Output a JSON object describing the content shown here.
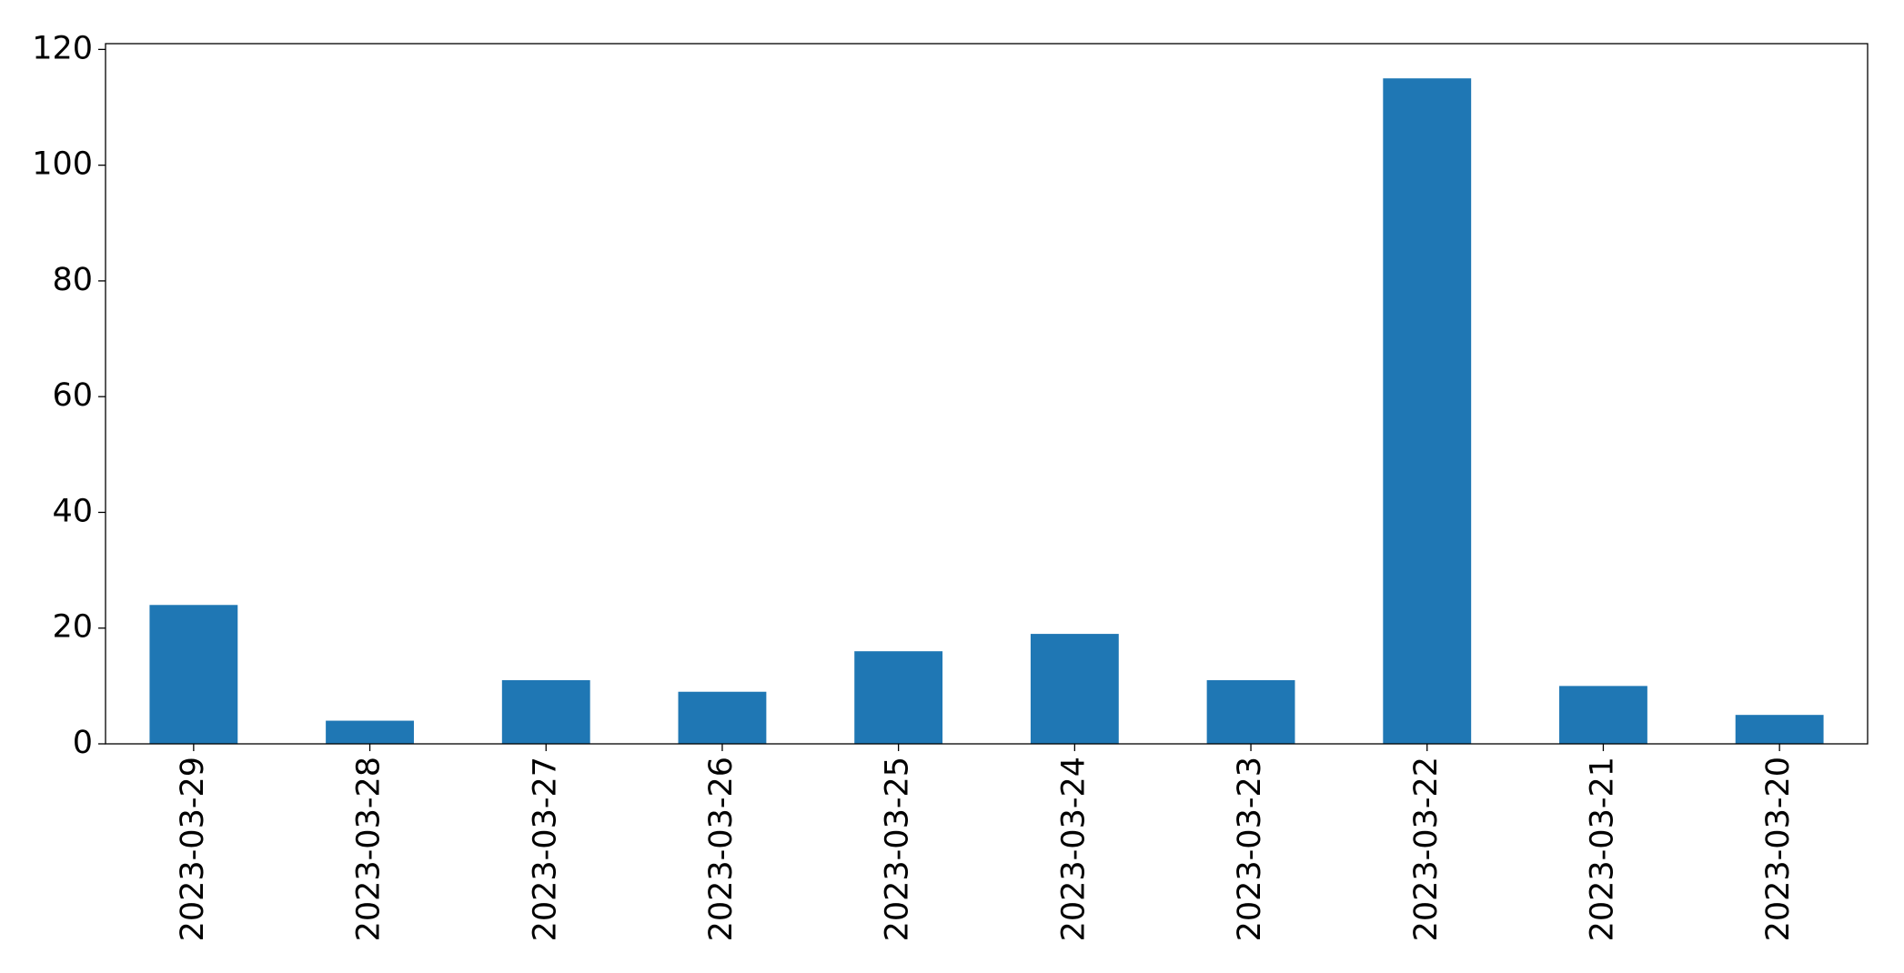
{
  "chart_data": {
    "type": "bar",
    "categories": [
      "2023-03-29",
      "2023-03-28",
      "2023-03-27",
      "2023-03-26",
      "2023-03-25",
      "2023-03-24",
      "2023-03-23",
      "2023-03-22",
      "2023-03-21",
      "2023-03-20"
    ],
    "values": [
      24,
      4,
      11,
      9,
      16,
      19,
      11,
      115,
      10,
      5
    ],
    "color": "#1f77b4",
    "ylim": [
      0,
      121
    ],
    "yticks": [
      0,
      20,
      40,
      60,
      80,
      100,
      120
    ],
    "grid": false
  }
}
